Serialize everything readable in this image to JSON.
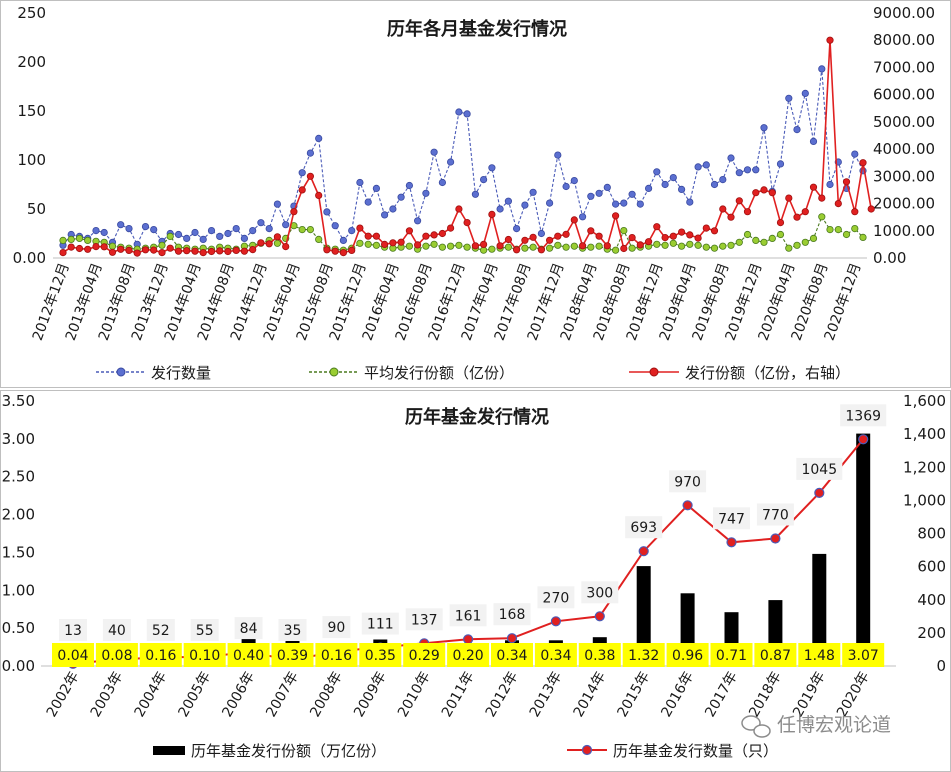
{
  "watermark": "任博宏观论道",
  "chart_data": [
    {
      "type": "line",
      "title": "历年各月基金发行情况",
      "y_left": {
        "min": 0,
        "max": 250,
        "ticks": [
          0,
          50,
          100,
          150,
          200,
          250
        ],
        "tick_labels": [
          "0.00",
          "50",
          "100",
          "150",
          "200",
          "250"
        ]
      },
      "y_right": {
        "min": 0,
        "max": 9000,
        "ticks": [
          0,
          1000,
          2000,
          3000,
          4000,
          5000,
          6000,
          7000,
          8000,
          9000
        ],
        "tick_labels": [
          "0.00",
          "1000.00",
          "2000.00",
          "3000.00",
          "4000.00",
          "5000.00",
          "6000.00",
          "7000.00",
          "8000.00",
          "9000.00"
        ]
      },
      "grid": false,
      "legend_position": "bottom",
      "x_tick_labels": [
        "2012年12月",
        "2013年04月",
        "2013年08月",
        "2013年12月",
        "2014年04月",
        "2014年08月",
        "2014年12月",
        "2015年04月",
        "2015年08月",
        "2015年12月",
        "2016年04月",
        "2016年08月",
        "2016年12月",
        "2017年04月",
        "2017年08月",
        "2017年12月",
        "2018年04月",
        "2018年08月",
        "2018年12月",
        "2019年04月",
        "2019年08月",
        "2019年12月",
        "2020年04月",
        "2020年08月",
        "2020年12月"
      ],
      "series": [
        {
          "name": "发行数量",
          "axis": "left",
          "color": "#4a5bb8",
          "style": "dashed",
          "values": [
            13,
            24,
            22,
            20,
            28,
            26,
            16,
            34,
            30,
            14,
            32,
            29,
            17,
            25,
            24,
            20,
            26,
            19,
            28,
            22,
            25,
            30,
            20,
            28,
            36,
            30,
            55,
            34,
            53,
            87,
            107,
            122,
            47,
            33,
            18,
            28,
            77,
            57,
            71,
            44,
            50,
            62,
            74,
            38,
            66,
            108,
            77,
            98,
            149,
            147,
            65,
            80,
            92,
            50,
            58,
            30,
            54,
            67,
            25,
            56,
            105,
            73,
            79,
            42,
            63,
            66,
            72,
            55,
            56,
            65,
            55,
            71,
            88,
            75,
            82,
            70,
            57,
            93,
            95,
            75,
            80,
            102,
            87,
            90,
            90,
            133,
            68,
            96,
            163,
            131,
            168,
            119,
            193,
            75,
            98,
            71,
            106,
            89
          ]
        },
        {
          "name": "平均发行份额（亿份）",
          "axis": "left",
          "color": "#4a7a1e",
          "style": "dashed",
          "values": [
            18,
            19,
            20,
            18,
            17,
            16,
            12,
            11,
            10,
            9,
            10,
            11,
            13,
            22,
            11,
            10,
            9,
            10,
            9,
            11,
            10,
            9,
            12,
            13,
            15,
            18,
            15,
            20,
            33,
            29,
            29,
            19,
            10,
            9,
            8,
            10,
            15,
            14,
            13,
            11,
            10,
            11,
            12,
            9,
            12,
            14,
            11,
            12,
            13,
            11,
            10,
            8,
            9,
            10,
            11,
            9,
            10,
            11,
            9,
            10,
            13,
            11,
            12,
            10,
            11,
            12,
            9,
            8,
            28,
            10,
            11,
            12,
            14,
            13,
            15,
            12,
            14,
            13,
            11,
            10,
            12,
            13,
            16,
            24,
            18,
            16,
            20,
            24,
            10,
            13,
            16,
            20,
            42,
            29,
            29,
            24,
            30,
            21
          ]
        },
        {
          "name": "发行份额（亿份，右轴）",
          "axis": "right",
          "color": "#e02020",
          "style": "solid",
          "values": [
            200,
            400,
            350,
            320,
            420,
            410,
            210,
            320,
            280,
            180,
            300,
            290,
            200,
            360,
            250,
            270,
            250,
            200,
            240,
            260,
            240,
            280,
            250,
            310,
            560,
            520,
            780,
            420,
            1700,
            2500,
            3000,
            2300,
            300,
            250,
            200,
            280,
            1100,
            800,
            800,
            500,
            560,
            580,
            1000,
            480,
            800,
            850,
            900,
            1100,
            1800,
            1300,
            450,
            500,
            1600,
            450,
            680,
            300,
            650,
            760,
            300,
            650,
            800,
            870,
            1400,
            450,
            1000,
            800,
            450,
            1550,
            350,
            750,
            480,
            600,
            1150,
            750,
            800,
            950,
            850,
            730,
            1100,
            1000,
            1800,
            1500,
            2100,
            1700,
            2400,
            2500,
            2400,
            1300,
            2200,
            1500,
            1700,
            2600,
            2200,
            8000,
            2000,
            2800,
            1700,
            3500,
            1800
          ]
        }
      ]
    },
    {
      "type": "bar",
      "title": "历年基金发行情况",
      "categories": [
        "2002年",
        "2003年",
        "2004年",
        "2005年",
        "2006年",
        "2007年",
        "2008年",
        "2009年",
        "2010年",
        "2011年",
        "2012年",
        "2013年",
        "2014年",
        "2015年",
        "2016年",
        "2017年",
        "2018年",
        "2019年",
        "2020年"
      ],
      "y_left": {
        "min": 0,
        "max": 3.5,
        "ticks": [
          0,
          0.5,
          1.0,
          1.5,
          2.0,
          2.5,
          3.0,
          3.5
        ],
        "tick_labels": [
          "0.00",
          "0.50",
          "1.00",
          "1.50",
          "2.00",
          "2.50",
          "3.00",
          "3.50"
        ]
      },
      "y_right": {
        "min": 0,
        "max": 1600,
        "ticks": [
          0,
          200,
          400,
          600,
          800,
          1000,
          1200,
          1400,
          1600
        ],
        "tick_labels": [
          "0",
          "200",
          "400",
          "600",
          "800",
          "1,000",
          "1,200",
          "1,400",
          "1,600"
        ]
      },
      "grid": false,
      "legend_position": "bottom",
      "series": [
        {
          "name": "历年基金发行份额（万亿份）",
          "type": "bar",
          "axis": "left",
          "color": "#000000",
          "values": [
            0.04,
            0.08,
            0.16,
            0.1,
            0.4,
            0.39,
            0.16,
            0.35,
            0.29,
            0.2,
            0.34,
            0.34,
            0.38,
            1.32,
            0.96,
            0.71,
            0.87,
            1.48,
            3.07
          ],
          "value_labels": [
            "0.04",
            "0.08",
            "0.16",
            "0.10",
            "0.40",
            "0.39",
            "0.16",
            "0.35",
            "0.29",
            "0.20",
            "0.34",
            "0.34",
            "0.38",
            "1.32",
            "0.96",
            "0.71",
            "0.87",
            "1.48",
            "3.07"
          ],
          "label_color": "#ffff00"
        },
        {
          "name": "历年基金发行数量（只）",
          "type": "line",
          "axis": "right",
          "color": "#e02020",
          "values": [
            13,
            40,
            52,
            55,
            84,
            35,
            90,
            111,
            137,
            161,
            168,
            270,
            300,
            693,
            970,
            747,
            770,
            1045,
            1369
          ],
          "value_labels": [
            "13",
            "40",
            "52",
            "55",
            "84",
            "35",
            "90",
            "111",
            "137",
            "161",
            "168",
            "270",
            "300",
            "693",
            "970",
            "747",
            "770",
            "1045",
            "1369"
          ],
          "label_color": "#f2f2f2"
        }
      ]
    }
  ]
}
